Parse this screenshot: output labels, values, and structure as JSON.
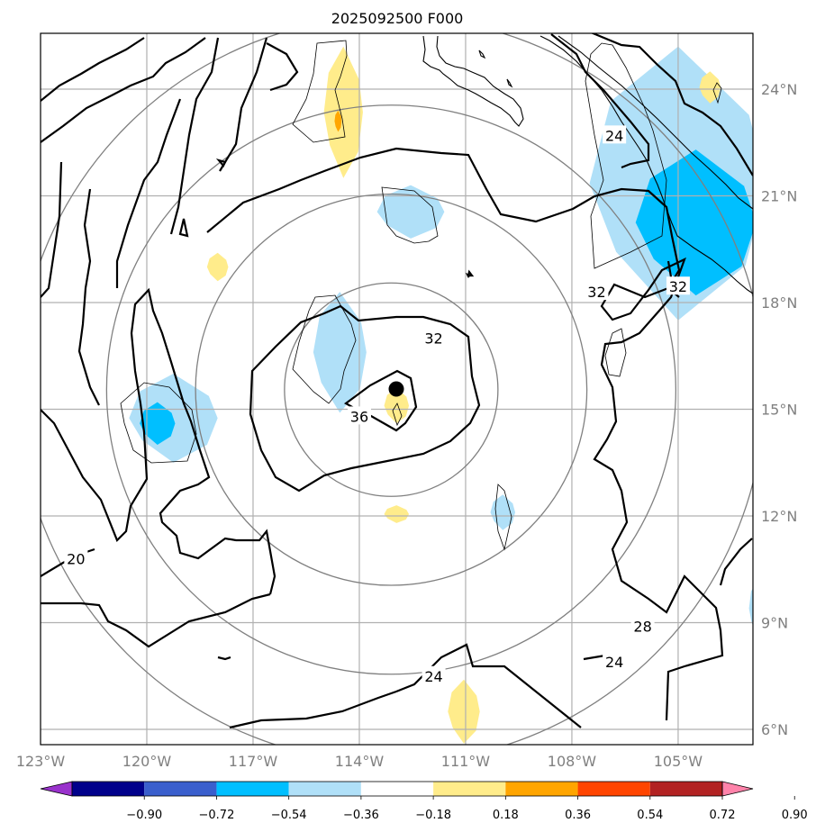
{
  "chart_data": {
    "type": "heatmap",
    "title": "2025092500 F000",
    "projection": "lat-lon map, centered near 113W 15.5N",
    "x_axis": {
      "range_deg_lon": [
        -123,
        -102.5
      ],
      "ticks": [
        -123,
        -120,
        -117,
        -114,
        -111,
        -108,
        -105
      ],
      "tick_labels": [
        "123°W",
        "120°W",
        "117°W",
        "114°W",
        "111°W",
        "108°W",
        "105°W"
      ]
    },
    "y_axis": {
      "range_deg_lat": [
        5.6,
        25.3
      ],
      "ticks": [
        6,
        9,
        12,
        15,
        18,
        21,
        24
      ],
      "tick_labels": [
        "6°N",
        "9°N",
        "12°N",
        "15°N",
        "18°N",
        "21°N",
        "24°N"
      ],
      "side": "right"
    },
    "grid": true,
    "center_marker": {
      "lon": -113.1,
      "lat": 15.55,
      "symbol": "filled-circle"
    },
    "range_rings_deg": [
      3,
      5.5,
      8,
      10.5
    ],
    "contour_labels": [
      {
        "text": "32",
        "lon": -111.9,
        "lat": 17.0
      },
      {
        "text": "36",
        "lon": -114.0,
        "lat": 14.8
      },
      {
        "text": "24",
        "lon": -106.8,
        "lat": 22.7
      },
      {
        "text": "32",
        "lon": -107.3,
        "lat": 18.3
      },
      {
        "text": "32",
        "lon": -105.0,
        "lat": 18.45
      },
      {
        "text": "20",
        "lon": -122.0,
        "lat": 10.8
      },
      {
        "text": "28",
        "lon": -106.0,
        "lat": 8.9
      },
      {
        "text": "24",
        "lon": -111.9,
        "lat": 7.5
      },
      {
        "text": "24",
        "lon": -106.8,
        "lat": 7.9
      }
    ],
    "colorbar": {
      "levels": [
        -0.9,
        -0.72,
        -0.54,
        -0.36,
        -0.18,
        0.18,
        0.36,
        0.54,
        0.72,
        0.9
      ],
      "tick_labels": [
        "−0.90",
        "−0.72",
        "−0.54",
        "−0.36",
        "−0.18",
        "0.18",
        "0.36",
        "0.54",
        "0.72",
        "0.90"
      ],
      "colors": [
        "#9932cc",
        "#00008b",
        "#3a5fcd",
        "#00bfff",
        "#b0e0f8",
        "#ffffff",
        "#ffec8b",
        "#ffa500",
        "#ff4500",
        "#b22222",
        "#ff83aa"
      ],
      "extend": "both",
      "orientation": "horizontal"
    },
    "shaded_regions": [
      {
        "level": 0.18,
        "lon": [
          -115.0,
          -113.9
        ],
        "lat": [
          21.5,
          25.2
        ]
      },
      {
        "level": 0.36,
        "lon": [
          -114.7,
          -114.5
        ],
        "lat": [
          22.8,
          23.4
        ]
      },
      {
        "level": -0.18,
        "lon": [
          -113.5,
          -111.6
        ],
        "lat": [
          19.8,
          21.3
        ]
      },
      {
        "level": -0.18,
        "lon": [
          -115.3,
          -113.8
        ],
        "lat": [
          14.9,
          18.3
        ]
      },
      {
        "level": -0.18,
        "lon": [
          -120.5,
          -118.0
        ],
        "lat": [
          13.5,
          16.0
        ]
      },
      {
        "level": -0.36,
        "lon": [
          -120.2,
          -119.2
        ],
        "lat": [
          14.0,
          15.2
        ]
      },
      {
        "level": -0.18,
        "lon": [
          -107.5,
          -102.5
        ],
        "lat": [
          17.5,
          25.2
        ]
      },
      {
        "level": -0.36,
        "lon": [
          -106.2,
          -102.8
        ],
        "lat": [
          18.2,
          22.3
        ]
      },
      {
        "level": 0.18,
        "lon": [
          -113.3,
          -112.6
        ],
        "lat": [
          14.6,
          15.6
        ]
      },
      {
        "level": 0.18,
        "lon": [
          -113.3,
          -112.6
        ],
        "lat": [
          11.8,
          12.3
        ]
      },
      {
        "level": -0.18,
        "lon": [
          -110.3,
          -109.6
        ],
        "lat": [
          11.6,
          12.6
        ]
      },
      {
        "level": 0.18,
        "lon": [
          -111.5,
          -110.6
        ],
        "lat": [
          5.6,
          7.4
        ]
      },
      {
        "level": 0.18,
        "lon": [
          -104.4,
          -103.8
        ],
        "lat": [
          23.6,
          24.5
        ]
      },
      {
        "level": 0.18,
        "lon": [
          -118.3,
          -117.7
        ],
        "lat": [
          18.6,
          19.4
        ]
      },
      {
        "level": -0.18,
        "lon": [
          -103.0,
          -102.5
        ],
        "lat": [
          8.6,
          10.2
        ]
      }
    ]
  }
}
